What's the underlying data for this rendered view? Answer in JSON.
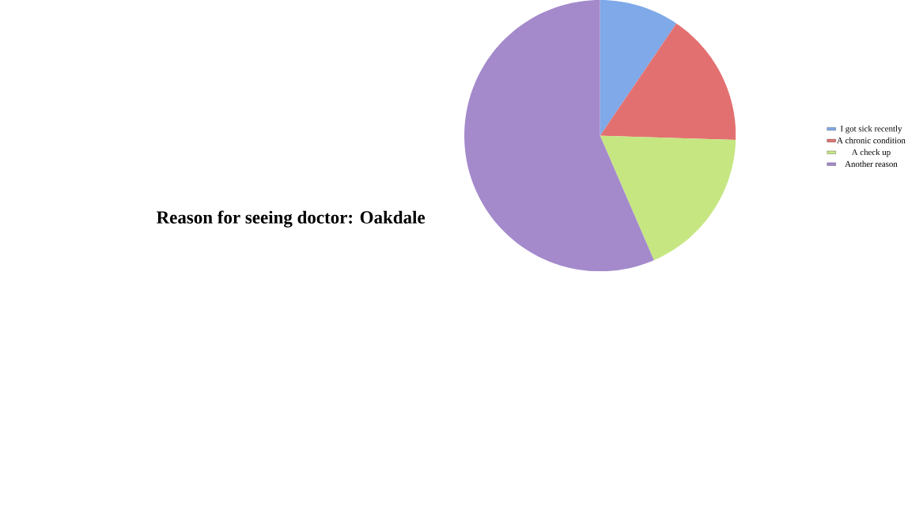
{
  "chart_data": {
    "type": "pie",
    "title": "Reason for seeing doctor: Oakdale",
    "categories": [
      "I got sick recently",
      "A chronic condition",
      "A check up",
      "Another reason"
    ],
    "values": [
      9.5,
      16,
      18,
      56.5
    ],
    "colors": [
      "#7fa9e8",
      "#e37070",
      "#c6e682",
      "#a48acb"
    ],
    "legend": "right"
  }
}
